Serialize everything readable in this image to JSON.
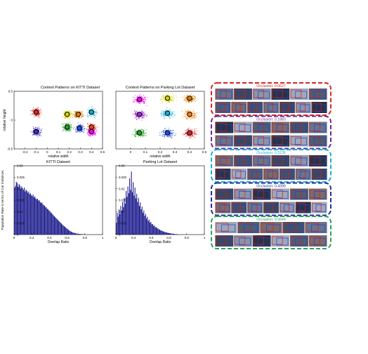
{
  "chart_data": [
    {
      "type": "scatter",
      "title": "Context Patterns on KITTI Dataset",
      "xlabel": "relative width",
      "ylabel": "relative height",
      "xlim": [
        -0.3,
        0.5
      ],
      "ylim": [
        -0.5,
        0.5
      ],
      "xticks": [
        "-0.2",
        "-0.1",
        "0",
        "0.1",
        "0.2",
        "0.3",
        "0.4",
        "0.5"
      ],
      "yticks": [
        "0.5",
        "0",
        "-0.5"
      ],
      "clusters": [
        {
          "center": [
            -0.1,
            0.14
          ],
          "color": "#d62728"
        },
        {
          "center": [
            -0.1,
            -0.2
          ],
          "color": "#3b2bbf"
        },
        {
          "center": [
            0.18,
            0.1
          ],
          "color": "#d4d400"
        },
        {
          "center": [
            0.28,
            0.1
          ],
          "color": "#e07b00"
        },
        {
          "center": [
            0.4,
            0.14
          ],
          "color": "#17b0d6"
        },
        {
          "center": [
            0.18,
            -0.12
          ],
          "color": "#2ca02c"
        },
        {
          "center": [
            0.29,
            -0.14
          ],
          "color": "#1f4fd6"
        },
        {
          "center": [
            0.4,
            -0.12
          ],
          "color": "#e64a19"
        },
        {
          "center": [
            0.4,
            -0.2
          ],
          "color": "#ff00ff"
        }
      ]
    },
    {
      "type": "scatter",
      "title": "Context Patterns on Parking Lot Dataset",
      "xlabel": "relative width",
      "ylabel": "",
      "xlim": [
        -0.1,
        0.5
      ],
      "ylim": [
        -0.5,
        0.5
      ],
      "xticks": [
        "0",
        "0.1",
        "0.2",
        "0.3",
        "0.4",
        "0.5"
      ],
      "yticks": [],
      "clusters": [
        {
          "center": [
            0.06,
            0.36
          ],
          "color": "#ff00ff"
        },
        {
          "center": [
            0.25,
            0.38
          ],
          "color": "#d4d400"
        },
        {
          "center": [
            0.4,
            0.38
          ],
          "color": "#e07b00"
        },
        {
          "center": [
            0.06,
            0.1
          ],
          "color": "#a02cd6"
        },
        {
          "center": [
            0.25,
            0.12
          ],
          "color": "#17b0d6"
        },
        {
          "center": [
            0.4,
            0.1
          ],
          "color": "#ff7f0e"
        },
        {
          "center": [
            0.06,
            -0.22
          ],
          "color": "#2ca02c"
        },
        {
          "center": [
            0.25,
            -0.22
          ],
          "color": "#1f4fd6"
        },
        {
          "center": [
            0.4,
            -0.22
          ],
          "color": "#d62728"
        }
      ]
    },
    {
      "type": "bar",
      "title": "KITTI Dataset",
      "xlabel": "Overlap Ratio",
      "ylabel": "Population Rate in terms of Car Instances",
      "xlim": [
        0,
        1
      ],
      "ylim": [
        0,
        0.03
      ],
      "xticks": [
        "0",
        "0.2",
        "0.4",
        "0.6",
        "0.8",
        "1"
      ],
      "yticks": [
        "0.03",
        "0.025",
        "0.02",
        "0.015",
        "0.01",
        "0.005",
        "0"
      ],
      "bar_color": "#1a1a8c",
      "x": [
        0.01,
        0.02,
        0.03,
        0.04,
        0.05,
        0.06,
        0.07,
        0.08,
        0.09,
        0.1,
        0.11,
        0.12,
        0.13,
        0.14,
        0.15,
        0.16,
        0.17,
        0.18,
        0.19,
        0.2,
        0.21,
        0.22,
        0.23,
        0.24,
        0.25,
        0.26,
        0.27,
        0.28,
        0.29,
        0.3,
        0.31,
        0.32,
        0.33,
        0.34,
        0.35,
        0.36,
        0.37,
        0.38,
        0.39,
        0.4,
        0.41,
        0.42,
        0.43,
        0.44,
        0.45,
        0.46,
        0.47,
        0.48,
        0.49,
        0.5,
        0.51,
        0.52,
        0.53,
        0.54,
        0.55,
        0.56,
        0.57,
        0.58,
        0.59,
        0.6,
        0.61,
        0.62,
        0.63,
        0.64,
        0.65,
        0.66,
        0.67,
        0.68,
        0.69,
        0.7,
        0.71,
        0.72,
        0.73,
        0.74,
        0.75,
        0.76,
        0.77,
        0.78,
        0.79,
        0.8
      ],
      "values": [
        0.0205,
        0.0212,
        0.023,
        0.0225,
        0.0208,
        0.022,
        0.0215,
        0.0198,
        0.021,
        0.0202,
        0.0195,
        0.0205,
        0.0188,
        0.0196,
        0.019,
        0.0182,
        0.0188,
        0.0176,
        0.018,
        0.0172,
        0.0168,
        0.0175,
        0.0162,
        0.0166,
        0.0158,
        0.0154,
        0.0156,
        0.0148,
        0.015,
        0.0142,
        0.0138,
        0.014,
        0.0132,
        0.0128,
        0.0126,
        0.012,
        0.0118,
        0.0112,
        0.011,
        0.0105,
        0.0102,
        0.0096,
        0.0094,
        0.0088,
        0.0084,
        0.008,
        0.0076,
        0.0072,
        0.0068,
        0.0064,
        0.006,
        0.0056,
        0.0052,
        0.0048,
        0.0044,
        0.004,
        0.0037,
        0.0034,
        0.003,
        0.0027,
        0.0024,
        0.0021,
        0.0018,
        0.0015,
        0.0013,
        0.0011,
        0.0009,
        0.0008,
        0.0007,
        0.0006,
        0.0005,
        0.0004,
        0.0004,
        0.0003,
        0.0003,
        0.0002,
        0.0002,
        0.0002,
        0.0001,
        0.0001
      ]
    },
    {
      "type": "bar",
      "title": "Parking Lot Dataset",
      "xlabel": "Overlap Ratio",
      "ylabel": "",
      "xlim": [
        0,
        1
      ],
      "ylim": [
        0,
        0.03
      ],
      "xticks": [
        "0",
        "0.2",
        "0.4",
        "0.6",
        "0.8",
        "1"
      ],
      "yticks": [
        "0.03",
        "0.025",
        "0.02",
        "0.015",
        "0.01",
        "0.005",
        "0"
      ],
      "bar_color": "#1a1a8c",
      "x": [
        0.01,
        0.02,
        0.03,
        0.04,
        0.05,
        0.06,
        0.07,
        0.08,
        0.09,
        0.1,
        0.11,
        0.12,
        0.13,
        0.14,
        0.15,
        0.16,
        0.17,
        0.18,
        0.19,
        0.2,
        0.21,
        0.22,
        0.23,
        0.24,
        0.25,
        0.26,
        0.27,
        0.28,
        0.29,
        0.3,
        0.31,
        0.32,
        0.33,
        0.34,
        0.35,
        0.36,
        0.37,
        0.38,
        0.39,
        0.4,
        0.41,
        0.42,
        0.43,
        0.44,
        0.45,
        0.46,
        0.47,
        0.48,
        0.49,
        0.5,
        0.51,
        0.52,
        0.53,
        0.54,
        0.55,
        0.56,
        0.57,
        0.58,
        0.59,
        0.6,
        0.61,
        0.62,
        0.63,
        0.64,
        0.65,
        0.66,
        0.67,
        0.68,
        0.69,
        0.7
      ],
      "values": [
        0.005,
        0.0095,
        0.0078,
        0.011,
        0.009,
        0.0125,
        0.0105,
        0.0142,
        0.012,
        0.016,
        0.0135,
        0.019,
        0.0165,
        0.021,
        0.018,
        0.0245,
        0.0195,
        0.0275,
        0.0185,
        0.0228,
        0.017,
        0.0205,
        0.0158,
        0.0178,
        0.0142,
        0.016,
        0.0125,
        0.014,
        0.011,
        0.0122,
        0.0095,
        0.0105,
        0.0082,
        0.009,
        0.007,
        0.0078,
        0.006,
        0.0065,
        0.0052,
        0.0055,
        0.0045,
        0.0046,
        0.0038,
        0.004,
        0.0032,
        0.0033,
        0.0027,
        0.0028,
        0.0022,
        0.0022,
        0.0018,
        0.0018,
        0.0015,
        0.0014,
        0.0012,
        0.0011,
        0.001,
        0.0009,
        0.0008,
        0.0007,
        0.0006,
        0.0005,
        0.0005,
        0.0004,
        0.0004,
        0.0003,
        0.0003,
        0.0002,
        0.0002,
        0.0002
      ]
    }
  ],
  "occlusion_groups": [
    {
      "label": "Occlusion: 0.0627",
      "color": "#d62728",
      "row_a": 6,
      "row_b": 7
    },
    {
      "label": "Occlusion: 0.1883",
      "color": "#6a2c91",
      "row_a": 6,
      "row_b": 6
    },
    {
      "label": "Occlusion: 0.3136",
      "color": "#17b0d6",
      "row_a": 6,
      "row_b": 7
    },
    {
      "label": "Occlusion: 0.4390",
      "color": "#1f2f9f",
      "row_a": 6,
      "row_b": 7
    },
    {
      "label": "Occlusion: 0.5644",
      "color": "#2ca05c",
      "row_a": 5,
      "row_b": 6
    }
  ]
}
